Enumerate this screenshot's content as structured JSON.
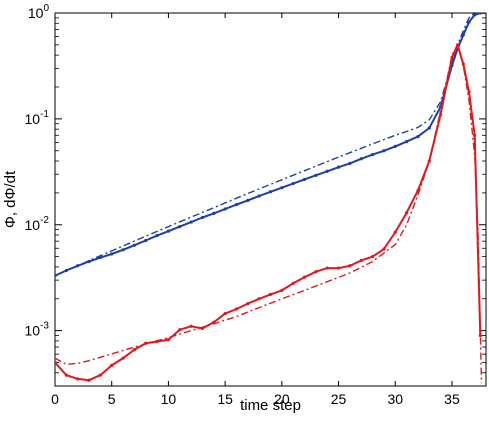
{
  "chart_data": {
    "type": "line",
    "title": "",
    "xlabel": "time step",
    "ylabel": "Φ, dΦ/dt",
    "xlim": [
      0,
      38
    ],
    "ylim": [
      0.0003,
      1
    ],
    "yscale": "log",
    "grid": false,
    "legend": "none",
    "x_ticks": [
      0,
      5,
      10,
      15,
      20,
      25,
      30,
      35
    ],
    "y_ticks": [
      {
        "value": 0.001,
        "base": "10",
        "exp": "-3"
      },
      {
        "value": 0.01,
        "base": "10",
        "exp": "-2"
      },
      {
        "value": 0.1,
        "base": "10",
        "exp": "-1"
      },
      {
        "value": 1,
        "base": "10",
        "exp": "0"
      }
    ],
    "series": [
      {
        "color": "#1f3fa8",
        "style": "solid",
        "markers": true,
        "x": [
          0,
          1,
          2,
          3,
          4,
          5,
          6,
          7,
          8,
          9,
          10,
          11,
          12,
          13,
          14,
          15,
          16,
          17,
          18,
          19,
          20,
          21,
          22,
          23,
          24,
          25,
          26,
          27,
          28,
          29,
          30,
          31,
          32,
          33,
          34,
          35,
          35.5,
          36,
          36.5,
          37,
          37.5,
          38
        ],
        "y": [
          0.0033,
          0.0037,
          0.0041,
          0.0045,
          0.0049,
          0.0053,
          0.0058,
          0.0064,
          0.0071,
          0.0079,
          0.0087,
          0.0096,
          0.0106,
          0.0117,
          0.0128,
          0.0141,
          0.0155,
          0.017,
          0.0187,
          0.0205,
          0.0224,
          0.0245,
          0.0268,
          0.0293,
          0.032,
          0.035,
          0.038,
          0.042,
          0.046,
          0.05,
          0.055,
          0.061,
          0.068,
          0.082,
          0.13,
          0.32,
          0.46,
          0.62,
          0.82,
          0.96,
          1.0,
          1.0
        ]
      },
      {
        "color": "#1f3fa8",
        "style": "dashdot",
        "markers": false,
        "x": [
          0,
          2,
          4,
          6,
          8,
          10,
          12,
          14,
          16,
          18,
          20,
          22,
          24,
          26,
          28,
          30,
          31,
          32,
          33,
          34,
          35,
          35.5,
          36,
          36.5,
          37,
          38
        ],
        "y": [
          0.0033,
          0.0041,
          0.0051,
          0.0063,
          0.0078,
          0.0096,
          0.0118,
          0.0145,
          0.0178,
          0.0218,
          0.0266,
          0.0324,
          0.0395,
          0.0479,
          0.058,
          0.07,
          0.076,
          0.083,
          0.098,
          0.145,
          0.34,
          0.5,
          0.68,
          0.9,
          1.0,
          1.0
        ]
      },
      {
        "color": "#e0191e",
        "style": "solid",
        "markers": true,
        "x": [
          0,
          1,
          2,
          3,
          4,
          5,
          6,
          7,
          8,
          9,
          10,
          11,
          12,
          13,
          14,
          15,
          16,
          17,
          18,
          19,
          20,
          21,
          22,
          23,
          24,
          25,
          26,
          27,
          28,
          29,
          30,
          31,
          32,
          33,
          34,
          35,
          35.5,
          36,
          36.5,
          37,
          37.5
        ],
        "y": [
          0.0005,
          0.00038,
          0.00035,
          0.00034,
          0.00038,
          0.00047,
          0.00055,
          0.00066,
          0.00076,
          0.00079,
          0.00082,
          0.00102,
          0.0011,
          0.00105,
          0.0012,
          0.00145,
          0.0016,
          0.0018,
          0.002,
          0.0022,
          0.0024,
          0.0028,
          0.0032,
          0.0036,
          0.0039,
          0.0039,
          0.0041,
          0.0046,
          0.005,
          0.0059,
          0.0085,
          0.013,
          0.021,
          0.04,
          0.11,
          0.38,
          0.5,
          0.33,
          0.18,
          0.07,
          0.0009
        ]
      },
      {
        "color": "#e0191e",
        "style": "dashdot",
        "markers": false,
        "x": [
          0,
          1,
          2,
          3,
          4,
          6,
          8,
          10,
          12,
          14,
          16,
          18,
          20,
          22,
          24,
          26,
          28,
          30,
          31,
          32,
          33,
          34,
          35,
          35.5,
          36,
          36.5,
          37,
          37.3,
          37.6
        ],
        "y": [
          0.00055,
          0.00048,
          0.00049,
          0.00052,
          0.00056,
          0.00065,
          0.00075,
          0.00086,
          0.001,
          0.00116,
          0.00136,
          0.00165,
          0.002,
          0.0024,
          0.0029,
          0.0035,
          0.0045,
          0.0065,
          0.01,
          0.019,
          0.04,
          0.12,
          0.4,
          0.5,
          0.32,
          0.15,
          0.045,
          0.008,
          0.00032
        ]
      }
    ]
  }
}
